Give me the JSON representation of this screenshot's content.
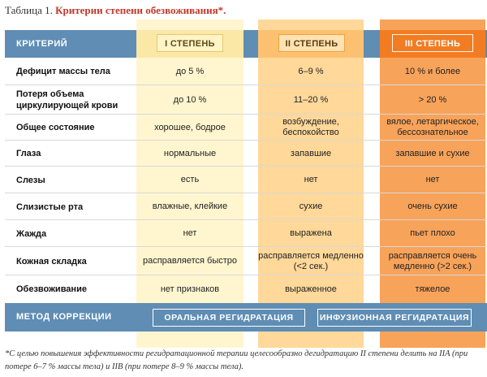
{
  "title": {
    "prefix": "Таблица 1. ",
    "main": "Критерии степени обезвоживания*."
  },
  "header": {
    "criterion_label": "КРИТЕРИЙ",
    "degrees": [
      "I СТЕПЕНЬ",
      "II СТЕПЕНЬ",
      "III СТЕПЕНЬ"
    ]
  },
  "rows": [
    {
      "criterion": "Дефицит массы тела",
      "values": [
        "до 5 %",
        "6–9 %",
        "10 % и более"
      ]
    },
    {
      "criterion": "Потеря объема циркулирующей крови",
      "values": [
        "до 10 %",
        "11–20 %",
        "> 20 %"
      ]
    },
    {
      "criterion": "Общее состояние",
      "values": [
        "хорошее, бодрое",
        "возбуждение, беспокойство",
        "вялое, летаргическое, бессознательное"
      ]
    },
    {
      "criterion": "Глаза",
      "values": [
        "нормальные",
        "запавшие",
        "запавшие и сухие"
      ]
    },
    {
      "criterion": "Слезы",
      "values": [
        "есть",
        "нет",
        "нет"
      ]
    },
    {
      "criterion": "Слизистые рта",
      "values": [
        "влажные, клейкие",
        "сухие",
        "очень сухие"
      ]
    },
    {
      "criterion": "Жажда",
      "values": [
        "нет",
        "выражена",
        "пьет плохо"
      ]
    },
    {
      "criterion": "Кожная складка",
      "values": [
        "расправляется быстро",
        "расправляется медленно (<2 сек.)",
        "расправляется очень медленно (>2 сек.)"
      ]
    },
    {
      "criterion": "Обезвоживание",
      "values": [
        "нет признаков",
        "выраженное",
        "тяжелое"
      ]
    }
  ],
  "method": {
    "label": "МЕТОД КОРРЕКЦИИ",
    "oral": "ОРАЛЬНАЯ РЕГИДРАТАЦИЯ",
    "infusion": "ИНФУЗИОННАЯ РЕГИДРАТАЦИЯ"
  },
  "footnote": "*С целью повышения эффективности регидратационной терапии целесообразно дегидратацию II степени делить на IIA (при потере 6–7 % массы тела) и IIB (при потере 8–9 % массы тела).",
  "colors": {
    "band": "#5f8db4",
    "degree1": "#fff6cf",
    "degree2": "#ffd89a",
    "degree3": "#f8a35a",
    "title_accent": "#c0392b"
  }
}
